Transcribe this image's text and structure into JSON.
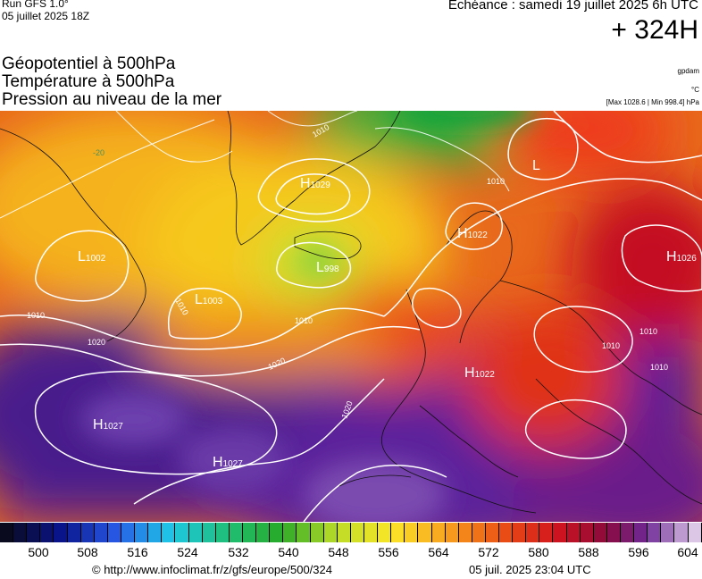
{
  "header": {
    "run_title": "Run GFS 1.0°",
    "run_date": "05 juillet 2025 18Z",
    "valid_time": "Echéance : samedi 19 juillet 2025 6h UTC",
    "lead_time": "+ 324H"
  },
  "parameters": [
    {
      "label": "Géopotentiel à 500hPa",
      "unit": "gpdam"
    },
    {
      "label": "Température à 500hPa",
      "unit": "°C"
    },
    {
      "label": "Pression au niveau de la mer",
      "unit": "[Max 1028.6 | Min 998.4] hPa"
    }
  ],
  "pressure_centers": [
    {
      "type": "H",
      "value": "1029"
    },
    {
      "type": "L",
      "value": "998"
    },
    {
      "type": "L",
      "value": "1002"
    },
    {
      "type": "L",
      "value": "1003"
    },
    {
      "type": "H",
      "value": "1022"
    },
    {
      "type": "H",
      "value": "1026"
    },
    {
      "type": "H",
      "value": "1022"
    },
    {
      "type": "H",
      "value": "1027"
    },
    {
      "type": "H",
      "value": "1027"
    },
    {
      "type": "L",
      "value": ""
    }
  ],
  "isobar_labels": [
    "1010",
    "1010",
    "1010",
    "1020",
    "1020",
    "1020",
    "1010",
    "1010",
    "1010",
    "1010",
    "1010"
  ],
  "temperature_label": "-20",
  "colorbar": {
    "min": 500,
    "max": 604,
    "step": 2,
    "tick_labels": [
      "500",
      "508",
      "516",
      "524",
      "532",
      "540",
      "548",
      "556",
      "564",
      "572",
      "580",
      "588",
      "596",
      "604"
    ]
  },
  "footer": {
    "source": "© http://www.infoclimat.fr/z/gfs/europe/500/324",
    "timestamp": "05 juil. 2025 23:04 UTC"
  }
}
